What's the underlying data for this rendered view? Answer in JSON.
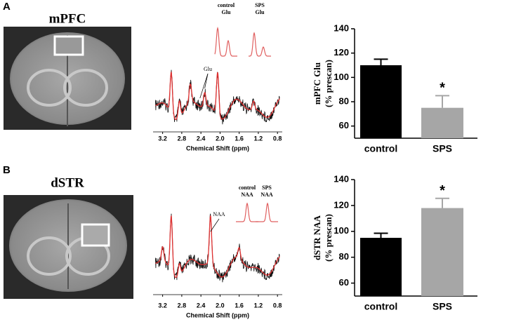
{
  "panels": [
    {
      "letter": "A",
      "region": "mPFC",
      "spectrum": {
        "xlabel": "Chemical Shift (ppm)",
        "xlim": [
          3.4,
          0.7
        ],
        "xticks": [
          3.2,
          2.8,
          2.4,
          {
            "value": 2,
            "label": "2.0"
          },
          1.6,
          1.2,
          0.8
        ],
        "peak_label": "Glu",
        "inset_labels": [
          [
            "control",
            "Glu"
          ],
          [
            "SPS",
            "Glu"
          ]
        ]
      }
    },
    {
      "letter": "B",
      "region": "dSTR",
      "spectrum": {
        "xlabel": "Chemical Shift (ppm)",
        "xlim": [
          3.4,
          0.7
        ],
        "xticks": [
          3.2,
          2.8,
          2.4,
          {
            "value": 2,
            "label": "2.0"
          },
          1.6,
          1.2,
          0.8
        ],
        "peak_label": "NAA",
        "inset_labels": [
          [
            "control",
            "NAA"
          ],
          [
            "SPS",
            "NAA"
          ]
        ]
      }
    }
  ],
  "chart_data": [
    {
      "type": "bar",
      "ylabel": [
        "mPFC Glu",
        "(% prescan)"
      ],
      "categories": [
        "control",
        "SPS"
      ],
      "values": [
        110,
        75
      ],
      "errors": [
        5,
        10
      ],
      "colors": [
        "#000000",
        "#a6a6a6"
      ],
      "ylim": [
        50,
        140
      ],
      "yticks": [
        60,
        80,
        100,
        120,
        140
      ],
      "annotation": "*"
    },
    {
      "type": "bar",
      "ylabel": [
        "dSTR NAA",
        "(% prescan)"
      ],
      "categories": [
        "control",
        "SPS"
      ],
      "values": [
        95,
        118
      ],
      "errors": [
        3.5,
        7.5
      ],
      "colors": [
        "#000000",
        "#a6a6a6"
      ],
      "ylim": [
        50,
        140
      ],
      "yticks": [
        60,
        80,
        100,
        120,
        140
      ],
      "annotation": "*"
    }
  ]
}
